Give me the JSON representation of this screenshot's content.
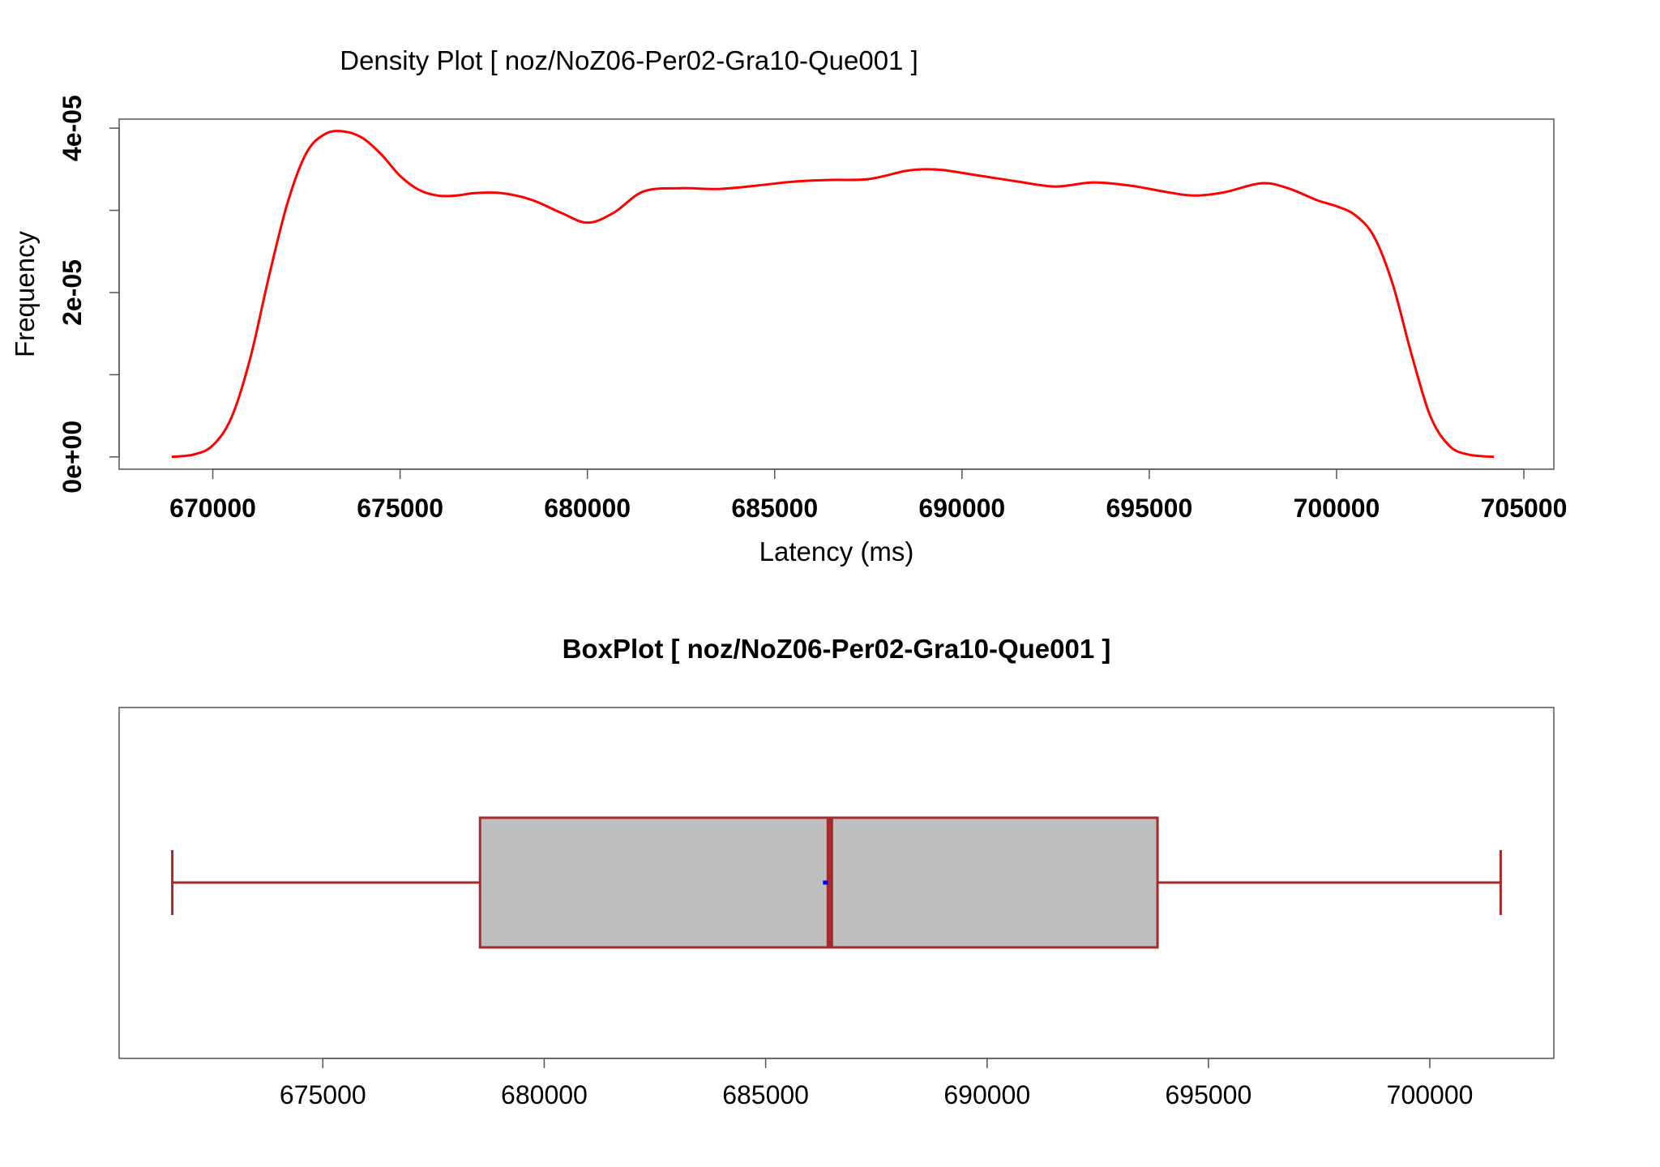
{
  "chart_data": [
    {
      "type": "line",
      "title": "Density Plot [ noz/NoZ06-Per02-Gra10-Que001 ]",
      "xlabel": "Latency (ms)",
      "ylabel": "Frequency",
      "xlim": [
        667500,
        705800
      ],
      "ylim": [
        -1.5e-06,
        4.11e-05
      ],
      "x_ticks": [
        670000,
        675000,
        680000,
        685000,
        690000,
        695000,
        700000,
        705000
      ],
      "x_tick_labels": [
        "670000",
        "675000",
        "680000",
        "685000",
        "690000",
        "695000",
        "700000",
        "705000"
      ],
      "y_ticks": [
        0,
        1e-05,
        2e-05,
        3e-05,
        4e-05
      ],
      "y_tick_labels": [
        "0e+00",
        "",
        "2e-05",
        "",
        "4e-05"
      ],
      "grid": false,
      "line_color": "#ff0000",
      "series": [
        {
          "x": [
            668900,
            669500,
            670000,
            670500,
            671000,
            671500,
            672000,
            672500,
            673000,
            673500,
            674000,
            674500,
            675000,
            675500,
            676000,
            676500,
            677000,
            677700,
            678500,
            679300,
            680000,
            680700,
            681500,
            682500,
            683500,
            684500,
            685500,
            686500,
            687500,
            688500,
            689000,
            689500,
            690500,
            691500,
            692500,
            693500,
            694500,
            695500,
            696200,
            697000,
            698000,
            698700,
            699500,
            700000,
            700500,
            701000,
            701500,
            702000,
            702500,
            703000,
            703500,
            704200
          ],
          "y": [
            0,
            3e-07,
            1.4e-06,
            4.8e-06,
            1.2e-05,
            2.2e-05,
            3.1e-05,
            3.7e-05,
            3.93e-05,
            3.96e-05,
            3.88e-05,
            3.68e-05,
            3.42e-05,
            3.25e-05,
            3.18e-05,
            3.18e-05,
            3.21e-05,
            3.21e-05,
            3.13e-05,
            2.97e-05,
            2.85e-05,
            2.97e-05,
            3.23e-05,
            3.27e-05,
            3.26e-05,
            3.3e-05,
            3.35e-05,
            3.37e-05,
            3.38e-05,
            3.48e-05,
            3.5e-05,
            3.49e-05,
            3.42e-05,
            3.35e-05,
            3.29e-05,
            3.34e-05,
            3.3e-05,
            3.22e-05,
            3.18e-05,
            3.22e-05,
            3.33e-05,
            3.27e-05,
            3.12e-05,
            3.05e-05,
            2.94e-05,
            2.68e-05,
            2.1e-05,
            1.25e-05,
            5e-06,
            1.4e-06,
            3e-07,
            0
          ]
        }
      ]
    },
    {
      "type": "box",
      "title": "BoxPlot [ noz/NoZ06-Per02-Gra10-Que001 ]",
      "xlim": [
        670400,
        702800
      ],
      "x_ticks": [
        675000,
        680000,
        685000,
        690000,
        695000,
        700000
      ],
      "x_tick_labels": [
        "675000",
        "680000",
        "685000",
        "690000",
        "695000",
        "700000"
      ],
      "grid": false,
      "whisker_low": 671600,
      "q1": 678550,
      "median": 686450,
      "q3": 693850,
      "whisker_high": 701600,
      "mean": 686350,
      "box_fill": "#bebebe",
      "box_stroke": "#a52a2a",
      "mean_color": "#0000ff"
    }
  ]
}
